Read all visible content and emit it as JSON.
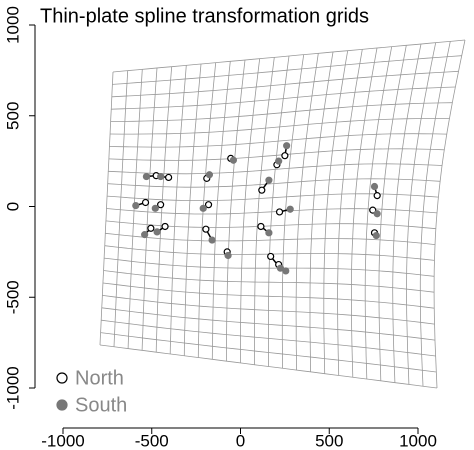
{
  "chart_data": {
    "type": "scatter",
    "title": "Thin-plate spline transformation grids",
    "series": [
      {
        "name": "North",
        "color": "#000000",
        "x": [
          -475,
          -405,
          -535,
          -450,
          -505,
          -425,
          -190,
          -55,
          -180,
          -195,
          -75,
          120,
          205,
          250,
          220,
          115,
          170,
          215,
          770,
          745,
          755
        ],
        "values": [
          170,
          160,
          22,
          10,
          -120,
          -110,
          155,
          265,
          10,
          -125,
          -250,
          90,
          230,
          280,
          -30,
          -110,
          -275,
          -320,
          60,
          -20,
          -145
        ]
      },
      {
        "name": "South",
        "color": "#777777",
        "x": [
          -530,
          -450,
          -590,
          -480,
          -540,
          -470,
          -175,
          -40,
          -210,
          -160,
          -70,
          160,
          215,
          260,
          280,
          160,
          225,
          255,
          755,
          770,
          765
        ],
        "values": [
          165,
          165,
          5,
          -10,
          -155,
          -140,
          175,
          255,
          -10,
          -185,
          -270,
          145,
          250,
          335,
          -15,
          -145,
          -340,
          -355,
          110,
          -40,
          -160
        ]
      }
    ],
    "xlim": [
      -1000,
      1000
    ],
    "ylim": [
      -1000,
      1000
    ],
    "xticks": [
      -1000,
      -500,
      0,
      500,
      1000
    ],
    "yticks": [
      -1000,
      -500,
      0,
      500,
      1000
    ],
    "legend": "bottom-left"
  }
}
